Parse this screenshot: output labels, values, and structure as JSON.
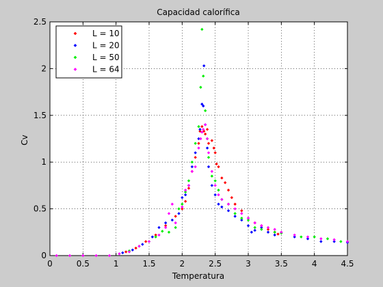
{
  "chart_data": {
    "type": "scatter",
    "title": "Capacidad calorífica",
    "xlabel": "Temperatura",
    "ylabel": "Cv",
    "xlim": [
      0,
      4.5
    ],
    "ylim": [
      0,
      2.5
    ],
    "xticks": [
      "0",
      "0.5",
      "1",
      "1.5",
      "2",
      "2.5",
      "3",
      "3.5",
      "4",
      "4.5"
    ],
    "yticks": [
      "0",
      "0.5",
      "1",
      "1.5",
      "2",
      "2.5"
    ],
    "grid": true,
    "legend_position": "top-left",
    "series": [
      {
        "name": "L = 10",
        "color": "#ff0000",
        "points": [
          [
            1.15,
            0.04
          ],
          [
            1.3,
            0.08
          ],
          [
            1.45,
            0.15
          ],
          [
            1.6,
            0.22
          ],
          [
            1.75,
            0.32
          ],
          [
            1.9,
            0.42
          ],
          [
            2.0,
            0.5
          ],
          [
            2.05,
            0.58
          ],
          [
            2.1,
            0.72
          ],
          [
            2.15,
            0.9
          ],
          [
            2.2,
            1.05
          ],
          [
            2.25,
            1.2
          ],
          [
            2.27,
            1.33
          ],
          [
            2.3,
            1.38
          ],
          [
            2.33,
            1.33
          ],
          [
            2.35,
            1.3
          ],
          [
            2.38,
            1.35
          ],
          [
            2.4,
            1.2
          ],
          [
            2.45,
            1.23
          ],
          [
            2.48,
            1.15
          ],
          [
            2.5,
            1.1
          ],
          [
            2.52,
            0.98
          ],
          [
            2.55,
            0.95
          ],
          [
            2.6,
            0.83
          ],
          [
            2.65,
            0.78
          ],
          [
            2.7,
            0.7
          ],
          [
            2.75,
            0.62
          ],
          [
            2.8,
            0.55
          ],
          [
            2.9,
            0.48
          ],
          [
            3.0,
            0.4
          ],
          [
            3.1,
            0.35
          ],
          [
            3.2,
            0.32
          ],
          [
            3.3,
            0.28
          ],
          [
            3.4,
            0.25
          ],
          [
            3.45,
            0.23
          ]
        ]
      },
      {
        "name": "L = 20",
        "color": "#0000ff",
        "points": [
          [
            1.1,
            0.03
          ],
          [
            1.25,
            0.06
          ],
          [
            1.4,
            0.12
          ],
          [
            1.55,
            0.2
          ],
          [
            1.65,
            0.3
          ],
          [
            1.75,
            0.35
          ],
          [
            1.85,
            0.38
          ],
          [
            1.95,
            0.45
          ],
          [
            2.0,
            0.62
          ],
          [
            2.05,
            0.65
          ],
          [
            2.1,
            0.75
          ],
          [
            2.15,
            0.95
          ],
          [
            2.2,
            1.1
          ],
          [
            2.25,
            1.25
          ],
          [
            2.27,
            1.35
          ],
          [
            2.3,
            1.62
          ],
          [
            2.32,
            1.6
          ],
          [
            2.33,
            2.03
          ],
          [
            2.35,
            1.4
          ],
          [
            2.38,
            1.15
          ],
          [
            2.4,
            0.95
          ],
          [
            2.45,
            0.75
          ],
          [
            2.5,
            0.65
          ],
          [
            2.55,
            0.55
          ],
          [
            2.6,
            0.52
          ],
          [
            2.7,
            0.48
          ],
          [
            2.8,
            0.42
          ],
          [
            2.9,
            0.38
          ],
          [
            3.0,
            0.32
          ],
          [
            3.05,
            0.25
          ],
          [
            3.1,
            0.27
          ],
          [
            3.2,
            0.3
          ],
          [
            3.3,
            0.25
          ],
          [
            3.4,
            0.22
          ],
          [
            3.7,
            0.2
          ],
          [
            3.9,
            0.18
          ],
          [
            4.1,
            0.15
          ],
          [
            4.3,
            0.15
          ],
          [
            4.5,
            0.14
          ]
        ]
      },
      {
        "name": "L = 50",
        "color": "#00ee00",
        "points": [
          [
            1.2,
            0.05
          ],
          [
            1.35,
            0.1
          ],
          [
            1.5,
            0.15
          ],
          [
            1.6,
            0.2
          ],
          [
            1.7,
            0.26
          ],
          [
            1.8,
            0.25
          ],
          [
            1.9,
            0.3
          ],
          [
            1.95,
            0.5
          ],
          [
            2.0,
            0.55
          ],
          [
            2.05,
            0.68
          ],
          [
            2.1,
            0.8
          ],
          [
            2.15,
            1.0
          ],
          [
            2.2,
            1.2
          ],
          [
            2.25,
            1.38
          ],
          [
            2.28,
            1.8
          ],
          [
            2.3,
            2.42
          ],
          [
            2.32,
            1.92
          ],
          [
            2.35,
            1.55
          ],
          [
            2.38,
            1.25
          ],
          [
            2.4,
            1.05
          ],
          [
            2.45,
            0.85
          ],
          [
            2.5,
            0.8
          ],
          [
            2.55,
            0.7
          ],
          [
            2.6,
            0.6
          ],
          [
            2.7,
            0.55
          ],
          [
            2.8,
            0.45
          ],
          [
            2.9,
            0.4
          ],
          [
            3.0,
            0.38
          ],
          [
            3.1,
            0.3
          ],
          [
            3.2,
            0.28
          ],
          [
            3.4,
            0.25
          ],
          [
            3.5,
            0.24
          ],
          [
            3.8,
            0.2
          ],
          [
            4.0,
            0.2
          ],
          [
            4.2,
            0.18
          ],
          [
            4.4,
            0.15
          ]
        ]
      },
      {
        "name": "L = 64",
        "color": "#ff00ff",
        "points": [
          [
            0.1,
            0.0
          ],
          [
            0.3,
            0.0
          ],
          [
            0.5,
            0.0
          ],
          [
            0.7,
            0.0
          ],
          [
            0.9,
            0.0
          ],
          [
            1.05,
            0.02
          ],
          [
            1.2,
            0.04
          ],
          [
            1.35,
            0.1
          ],
          [
            1.5,
            0.15
          ],
          [
            1.65,
            0.22
          ],
          [
            1.75,
            0.3
          ],
          [
            1.8,
            0.45
          ],
          [
            1.85,
            0.55
          ],
          [
            1.9,
            0.35
          ],
          [
            2.0,
            0.52
          ],
          [
            2.05,
            0.7
          ],
          [
            2.1,
            0.75
          ],
          [
            2.15,
            0.9
          ],
          [
            2.2,
            0.95
          ],
          [
            2.25,
            1.15
          ],
          [
            2.28,
            1.25
          ],
          [
            2.3,
            1.32
          ],
          [
            2.32,
            1.35
          ],
          [
            2.35,
            1.4
          ],
          [
            2.38,
            1.25
          ],
          [
            2.4,
            1.1
          ],
          [
            2.45,
            0.9
          ],
          [
            2.5,
            0.75
          ],
          [
            2.55,
            0.65
          ],
          [
            2.6,
            0.6
          ],
          [
            2.7,
            0.55
          ],
          [
            2.8,
            0.5
          ],
          [
            2.9,
            0.45
          ],
          [
            3.0,
            0.4
          ],
          [
            3.1,
            0.35
          ],
          [
            3.2,
            0.32
          ],
          [
            3.3,
            0.3
          ],
          [
            3.4,
            0.28
          ],
          [
            3.5,
            0.25
          ],
          [
            3.7,
            0.22
          ],
          [
            3.9,
            0.2
          ],
          [
            4.1,
            0.18
          ],
          [
            4.3,
            0.17
          ],
          [
            4.5,
            0.15
          ]
        ]
      }
    ]
  }
}
